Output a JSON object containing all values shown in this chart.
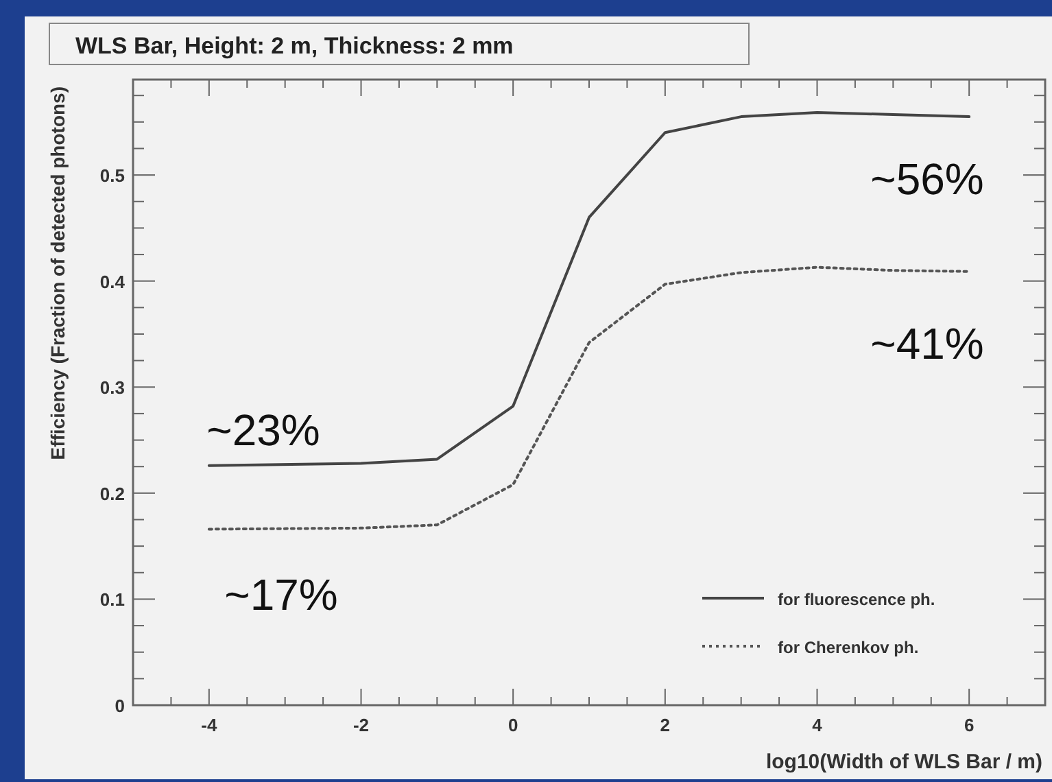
{
  "chart_data": {
    "type": "line",
    "title": "WLS Bar, Height: 2 m, Thickness: 2 mm",
    "xlabel": "log10(Width of WLS Bar / m)",
    "ylabel": "Efficiency (Fraction of detected photons)",
    "x": [
      -4,
      -2,
      -1,
      0,
      1,
      2,
      3,
      4,
      5,
      6
    ],
    "series": [
      {
        "name": "for fluorescence ph.",
        "color": "#444444",
        "line_style": "solid",
        "values": [
          0.226,
          0.228,
          0.232,
          0.282,
          0.46,
          0.54,
          0.555,
          0.559,
          0.557,
          0.555
        ]
      },
      {
        "name": "for Cherenkov ph.",
        "color": "#555555",
        "line_style": "dotted",
        "values": [
          0.166,
          0.167,
          0.17,
          0.208,
          0.342,
          0.397,
          0.408,
          0.413,
          0.41,
          0.409
        ]
      }
    ],
    "xlim": [
      -5,
      7
    ],
    "xticks": [
      -4,
      -2,
      0,
      2,
      4,
      6
    ],
    "ylim": [
      0,
      0.59
    ],
    "yticks": [
      0,
      0.1,
      0.2,
      0.3,
      0.4,
      0.5
    ],
    "grid": false,
    "legend": "bottom right",
    "annotations": [
      "~56%",
      "~41%",
      "~23%",
      "~17%"
    ]
  }
}
